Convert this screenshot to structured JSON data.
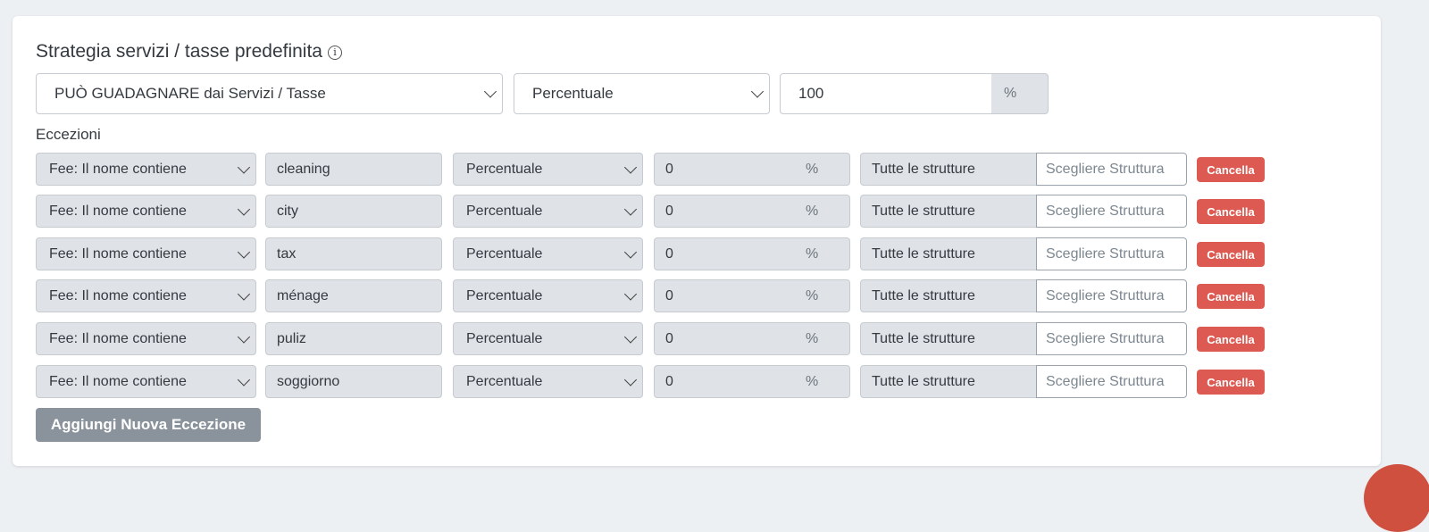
{
  "title": "Strategia servizi / tasse predefinita",
  "default": {
    "strategy": "PUÒ GUADAGNARE dai Servizi / Tasse",
    "type": "Percentuale",
    "value": "100",
    "unit": "%"
  },
  "exceptions_label": "Eccezioni",
  "rows": [
    {
      "condition": "Fee: Il nome contiene",
      "name": "cleaning",
      "type": "Percentuale",
      "value": "0",
      "unit": "%",
      "structures": "Tutte le strutture",
      "choose": "Scegliere Struttura",
      "delete": "Cancella"
    },
    {
      "condition": "Fee: Il nome contiene",
      "name": "city",
      "type": "Percentuale",
      "value": "0",
      "unit": "%",
      "structures": "Tutte le strutture",
      "choose": "Scegliere Struttura",
      "delete": "Cancella"
    },
    {
      "condition": "Fee: Il nome contiene",
      "name": "tax",
      "type": "Percentuale",
      "value": "0",
      "unit": "%",
      "structures": "Tutte le strutture",
      "choose": "Scegliere Struttura",
      "delete": "Cancella"
    },
    {
      "condition": "Fee: Il nome contiene",
      "name": "ménage",
      "type": "Percentuale",
      "value": "0",
      "unit": "%",
      "structures": "Tutte le strutture",
      "choose": "Scegliere Struttura",
      "delete": "Cancella"
    },
    {
      "condition": "Fee: Il nome contiene",
      "name": "puliz",
      "type": "Percentuale",
      "value": "0",
      "unit": "%",
      "structures": "Tutte le strutture",
      "choose": "Scegliere Struttura",
      "delete": "Cancella"
    },
    {
      "condition": "Fee: Il nome contiene",
      "name": "soggiorno",
      "type": "Percentuale",
      "value": "0",
      "unit": "%",
      "structures": "Tutte le strutture",
      "choose": "Scegliere Struttura",
      "delete": "Cancella"
    }
  ],
  "add_button": "Aggiungi Nuova Eccezione",
  "colors": {
    "danger": "#dc5a52",
    "secondary": "#8a939b",
    "disabled_bg": "#dfe2e6"
  }
}
